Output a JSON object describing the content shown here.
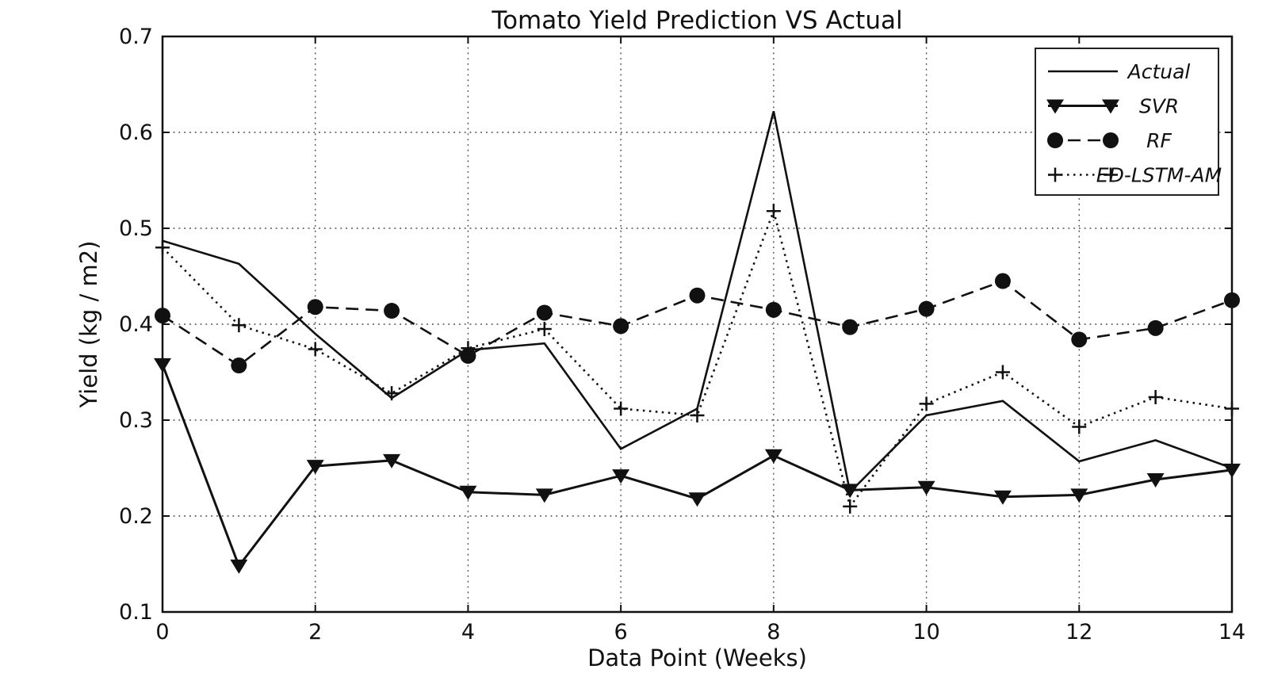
{
  "figure": {
    "background": "#ffffff",
    "foreground": "#111111"
  },
  "chart_data": {
    "type": "line",
    "title": "Tomato Yield Prediction VS Actual",
    "xlabel": "Data Point (Weeks)",
    "ylabel": "Yield (kg / m2)",
    "xlim": [
      0,
      14
    ],
    "ylim": [
      0.1,
      0.7
    ],
    "xticks": [
      0,
      2,
      4,
      6,
      8,
      10,
      12,
      14
    ],
    "yticks": [
      0.1,
      0.2,
      0.3,
      0.4,
      0.5,
      0.6,
      0.7
    ],
    "grid": true,
    "grid_style": "dotted",
    "line_color": "#111111",
    "legend": {
      "position": "top-right",
      "entries": [
        "Actual",
        "SVR",
        "RF",
        "ED-LSTM-AM"
      ]
    },
    "x": [
      0,
      1,
      2,
      3,
      4,
      5,
      6,
      7,
      8,
      9,
      10,
      11,
      12,
      13,
      14
    ],
    "series": [
      {
        "name": "Actual",
        "line_style": "solid",
        "marker": "none",
        "values": [
          0.487,
          0.463,
          0.39,
          0.323,
          0.373,
          0.38,
          0.27,
          0.312,
          0.622,
          0.225,
          0.305,
          0.32,
          0.257,
          0.279,
          0.25
        ]
      },
      {
        "name": "SVR",
        "line_style": "solid",
        "marker": "triangle-down",
        "values": [
          0.358,
          0.148,
          0.252,
          0.258,
          0.225,
          0.222,
          0.242,
          0.218,
          0.263,
          0.227,
          0.23,
          0.22,
          0.222,
          0.238,
          0.248
        ]
      },
      {
        "name": "RF",
        "line_style": "dashed",
        "marker": "circle",
        "values": [
          0.409,
          0.357,
          0.418,
          0.414,
          0.367,
          0.412,
          0.398,
          0.43,
          0.415,
          0.397,
          0.416,
          0.445,
          0.384,
          0.396,
          0.425
        ]
      },
      {
        "name": "ED-LSTM-AM",
        "line_style": "dotted",
        "marker": "plus",
        "values": [
          0.48,
          0.399,
          0.374,
          0.328,
          0.375,
          0.395,
          0.312,
          0.305,
          0.518,
          0.21,
          0.317,
          0.35,
          0.293,
          0.324,
          0.312
        ]
      }
    ]
  }
}
